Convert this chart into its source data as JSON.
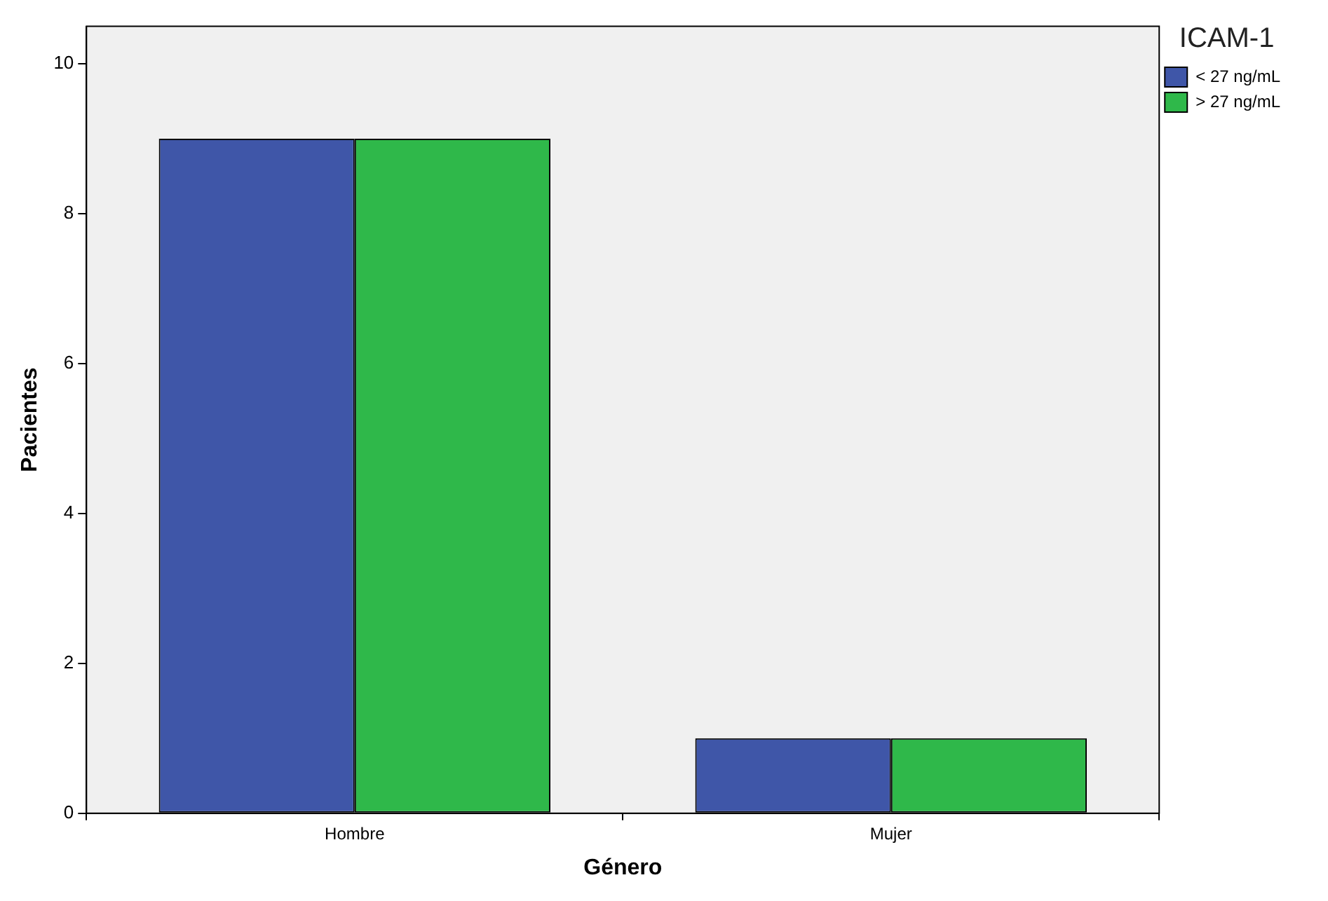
{
  "chart_data": {
    "type": "bar",
    "xlabel": "Género",
    "ylabel": "Pacientes",
    "legend_title": "ICAM-1",
    "categories": [
      "Hombre",
      "Mujer"
    ],
    "series": [
      {
        "name": "< 27 ng/mL",
        "color": "#3f56a8",
        "values": [
          9,
          1
        ]
      },
      {
        "name": "> 27 ng/mL",
        "color": "#2fb84a",
        "values": [
          9,
          1
        ]
      }
    ],
    "ylim": [
      0,
      10.5
    ],
    "yticks": [
      0,
      2,
      4,
      6,
      8,
      10
    ],
    "grid": false,
    "legend": "top right"
  }
}
